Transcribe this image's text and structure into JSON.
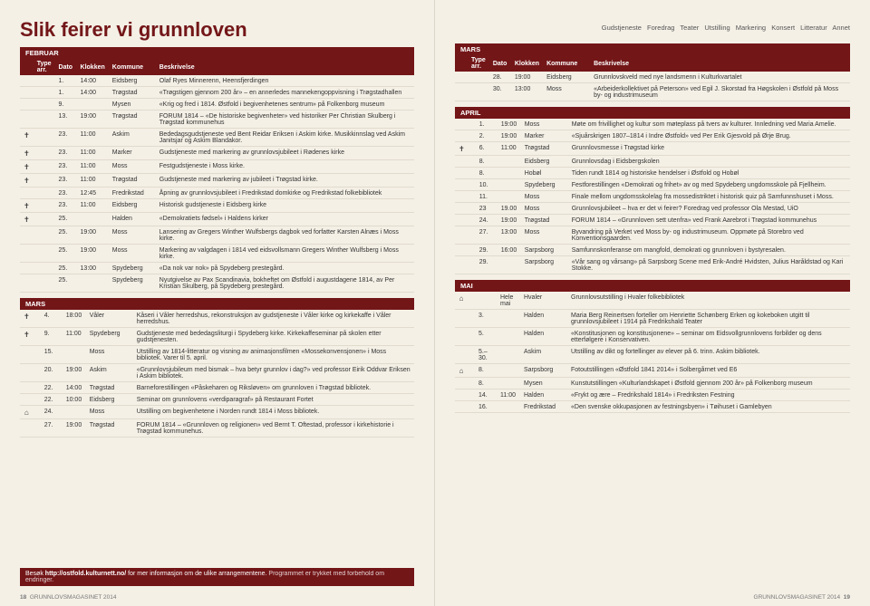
{
  "headline": "Slik feirer vi grunnloven",
  "subnav": "Gudstjeneste   Foredrag   Teater   Utstilling   Markering   Konsert   Litteratur   Annet",
  "colors": {
    "brand": "#731618",
    "bg": "#f4f0e6",
    "page": "#e8e3d8",
    "rule": "#e0dbcc"
  },
  "columns": [
    "",
    "Type arr.",
    "Dato",
    "Klokken",
    "Kommune",
    "Beskrivelse"
  ],
  "left": {
    "months": [
      {
        "name": "FEBRUAR",
        "rows": [
          {
            "ic": "",
            "d": "1.",
            "t": "14:00",
            "k": "Eidsberg",
            "b": "Olaf Ryes Minnerenn, Heensfjerdingen"
          },
          {
            "ic": "",
            "d": "1.",
            "t": "14:00",
            "k": "Trøgstad",
            "b": "«Trøgstigen gjennom 200 år» – en annerledes mannekengoppvisning i Trøgstadhallen"
          },
          {
            "ic": "",
            "d": "9.",
            "t": "",
            "k": "Mysen",
            "b": "«Krig og fred i 1814. Østfold i begivenhetenes sentrum» på Folkenborg museum"
          },
          {
            "ic": "",
            "d": "13.",
            "t": "19:00",
            "k": "Trøgstad",
            "b": "FORUM 1814 – «De historiske begivenheter» ved historiker Per Christian Skulberg i Trøgstad kommunehus"
          },
          {
            "ic": "✝",
            "d": "23.",
            "t": "11:00",
            "k": "Askim",
            "b": "Bededagsgudstjeneste ved Bent Reidar Eriksen i Askim kirke. Musikkinnslag ved Askim Janitsjar og Askim Blandakor."
          },
          {
            "ic": "✝",
            "d": "23.",
            "t": "11:00",
            "k": "Marker",
            "b": "Gudstjeneste med markering av grunnlovsjubileet i Rødenes kirke"
          },
          {
            "ic": "✝",
            "d": "23.",
            "t": "11:00",
            "k": "Moss",
            "b": "Festgudstjeneste i Moss kirke."
          },
          {
            "ic": "✝",
            "d": "23.",
            "t": "11:00",
            "k": "Trøgstad",
            "b": "Gudstjeneste med markering av jubileet i Trøgstad kirke."
          },
          {
            "ic": "",
            "d": "23.",
            "t": "12:45",
            "k": "Fredrikstad",
            "b": "Åpning av grunnlovsjubileet i Fredrikstad domkirke og Fredrikstad folkebibliotek"
          },
          {
            "ic": "✝",
            "d": "23.",
            "t": "11:00",
            "k": "Eidsberg",
            "b": "Historisk gudstjeneste i Eidsberg kirke"
          },
          {
            "ic": "✝",
            "d": "25.",
            "t": "",
            "k": "Halden",
            "b": "«Demokratiets fødsel» i Haldens kirker"
          },
          {
            "ic": "",
            "d": "25.",
            "t": "19:00",
            "k": "Moss",
            "b": "Lansering av Gregers Winther Wulfsbergs dagbok ved forfatter Karsten Alnæs i Moss kirke."
          },
          {
            "ic": "",
            "d": "25.",
            "t": "19:00",
            "k": "Moss",
            "b": "Markering av valgdagen i 1814 ved eidsvollsmann Gregers Winther Wulfsberg i Moss kirke."
          },
          {
            "ic": "",
            "d": "25.",
            "t": "13:00",
            "k": "Spydeberg",
            "b": "«Da nok var nok» på Spydeberg prestegård."
          },
          {
            "ic": "",
            "d": "25.",
            "t": "",
            "k": "Spydeberg",
            "b": "Nyutgivelse av Pax Scandinavia, bokheftet om Østfold i augustdagene 1814, av Per Kristian Skulberg, på Spydeberg prestegård."
          }
        ]
      },
      {
        "name": "MARS",
        "rows": [
          {
            "ic": "✝",
            "d": "4.",
            "t": "18:00",
            "k": "Våler",
            "b": "Kåseri i Våler herredshus, rekonstruksjon av gudstjeneste i Våler kirke og kirkekaffe i Våler herredshus."
          },
          {
            "ic": "✝",
            "d": "9.",
            "t": "11:00",
            "k": "Spydeberg",
            "b": "Gudstjeneste med bededagsliturgi i Spydeberg kirke. Kirkekaffeseminar på skolen etter gudstjenesten."
          },
          {
            "ic": "",
            "d": "15.",
            "t": "",
            "k": "Moss",
            "b": "Utstilling av 1814-litteratur og visning av animasjonsfilmen «Mossekonvensjonen» i Moss bibliotek. Varer til 5. april."
          },
          {
            "ic": "",
            "d": "20.",
            "t": "19:00",
            "k": "Askim",
            "b": "«Grunnlovsjubileum med bismak – hva betyr grunnlov i dag?» ved professor Eirik Oddvar Eriksen i Askim bibliotek."
          },
          {
            "ic": "",
            "d": "22.",
            "t": "14:00",
            "k": "Trøgstad",
            "b": "Barneforestillingen «Påskeharen og Riksløven» om grunnloven i Trøgstad bibliotek."
          },
          {
            "ic": "",
            "d": "22.",
            "t": "10:00",
            "k": "Eidsberg",
            "b": "Seminar om grunnlovens «verdiparagraf» på Restaurant Fortet"
          },
          {
            "ic": "⌂",
            "d": "24.",
            "t": "",
            "k": "Moss",
            "b": "Utstilling om begivenhetene i Norden rundt 1814 i Moss bibliotek."
          },
          {
            "ic": "",
            "d": "27.",
            "t": "19:00",
            "k": "Trøgstad",
            "b": "FORUM 1814 – «Grunnloven og religionen» ved Bernt T. Oftestad, professor i kirkehistorie i Trøgstad kommunehus."
          }
        ]
      }
    ]
  },
  "right": {
    "months": [
      {
        "name": "MARS",
        "rows": [
          {
            "ic": "",
            "d": "28.",
            "t": "19:00",
            "k": "Eidsberg",
            "b": "Grunnlovskveld med nye landsmenn i Kulturkvartalet"
          },
          {
            "ic": "",
            "d": "30.",
            "t": "13:00",
            "k": "Moss",
            "b": "«Arbeiderkollektivet på Peterson» ved Egil J. Skorstad fra Høgskolen i Østfold på Moss by- og industrimuseum"
          }
        ]
      },
      {
        "name": "APRIL",
        "rows": [
          {
            "ic": "",
            "d": "1.",
            "t": "19:00",
            "k": "Moss",
            "b": "Møte om frivillighet og kultur som møteplass på tvers av kulturer. Innledning ved Maria Amelie."
          },
          {
            "ic": "",
            "d": "2.",
            "t": "19:00",
            "k": "Marker",
            "b": "«Sjuårskrigen 1807–1814 i Indre Østfold» ved Per Erik Gjesvold på Ørje Brug."
          },
          {
            "ic": "✝",
            "d": "6.",
            "t": "11:00",
            "k": "Trøgstad",
            "b": "Grunnlovsmesse i Trøgstad kirke"
          },
          {
            "ic": "",
            "d": "8.",
            "t": "",
            "k": "Eidsberg",
            "b": "Grunnlovsdag i Eidsbergskolen"
          },
          {
            "ic": "",
            "d": "8.",
            "t": "",
            "k": "Hobøl",
            "b": "Tiden rundt 1814 og historiske hendelser i Østfold og Hobøl"
          },
          {
            "ic": "",
            "d": "10.",
            "t": "",
            "k": "Spydeberg",
            "b": "Festforestillingen «Demokrati og frihet» av og med Spydeberg ungdomsskole på Fjellheim."
          },
          {
            "ic": "",
            "d": "11.",
            "t": "",
            "k": "Moss",
            "b": "Finale mellom ungdomsskolelag fra mossedistriktet i historisk quiz på Samfunnshuset i Moss."
          },
          {
            "ic": "",
            "d": "23",
            "t": "19.00",
            "k": "Moss",
            "b": "Grunnlovsjubileet – hva er det vi feirer? Foredrag ved professor Ola Mestad, UiO"
          },
          {
            "ic": "",
            "d": "24.",
            "t": "19:00",
            "k": "Trøgstad",
            "b": "FORUM 1814 – «Grunnloven sett utenfra» ved Frank Aarebrot i Trøgstad kommunehus"
          },
          {
            "ic": "",
            "d": "27.",
            "t": "13:00",
            "k": "Moss",
            "b": "Byvandring på Verket ved Moss by- og industrimuseum. Oppmøte på Storebro ved Konventionsgaarden."
          },
          {
            "ic": "",
            "d": "29.",
            "t": "16:00",
            "k": "Sarpsborg",
            "b": "Samfunnskonferanse om mangfold, demokrati og grunnloven i bystyresalen."
          },
          {
            "ic": "",
            "d": "29.",
            "t": "",
            "k": "Sarpsborg",
            "b": "«Vår sang og vårsang» på Sarpsborg Scene med Erik-André Hvidsten, Julius Haråldstad og Kari Stokke."
          }
        ]
      },
      {
        "name": "MAI",
        "rows": [
          {
            "ic": "⌂",
            "d": "",
            "t": "Hele mai",
            "k": "Hvaler",
            "b": "Grunnlovsutstilling i Hvaler folkebibliotek"
          },
          {
            "ic": "",
            "d": "3.",
            "t": "",
            "k": "Halden",
            "b": "Maria Berg Reinertsen forteller om Henriette Schønberg Erken og kokeboken utgitt til grunnlovsjubileet i 1914 på Fredrikshald Teater"
          },
          {
            "ic": "",
            "d": "5.",
            "t": "",
            "k": "Halden",
            "b": "«Konstitusjonen og konstitusjonene» – seminar om Eidsvollgrunnlovens forbilder og dens etterfølgere i Konservativen."
          },
          {
            "ic": "",
            "d": "5.–30.",
            "t": "",
            "k": "Askim",
            "b": "Utstilling av dikt og fortellinger av elever på 6. trinn. Askim bibliotek."
          },
          {
            "ic": "⌂",
            "d": "8.",
            "t": "",
            "k": "Sarpsborg",
            "b": "Fotoutstillingen «Østfold 1841 2014» i Solbergårnet ved E6"
          },
          {
            "ic": "",
            "d": "8.",
            "t": "",
            "k": "Mysen",
            "b": "Kunstutstillingen «Kulturlandskapet i Østfold gjennom 200 år» på Folkenborg museum"
          },
          {
            "ic": "",
            "d": "14.",
            "t": "11:00",
            "k": "Halden",
            "b": "«Frykt og ære – Fredrikshald 1814» i Fredriksten Festning"
          },
          {
            "ic": "",
            "d": "16.",
            "t": "",
            "k": "Fredrikstad",
            "b": "«Den svenske okkupasjonen av festningsbyen» i Tøihuset i Gamlebyen"
          }
        ]
      }
    ]
  },
  "footer": {
    "link_label": "Besøk ",
    "link_url": "http://ostfold.kulturnett.no/",
    "link_tail": " for mer informasjon om de ulike arrangementene.",
    "disclaimer": " Programmet er trykket med forbehold om endringer.",
    "mag_left": "GRUNNLOVSMAGASINET 2014",
    "page_left": "18",
    "mag_right": "GRUNNLOVSMAGASINET 2014",
    "page_right": "19"
  }
}
